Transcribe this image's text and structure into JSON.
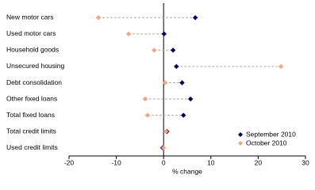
{
  "chart_data": {
    "type": "dot",
    "x_label": "% change",
    "categories": [
      "New motor cars",
      "Used motor cars",
      "Household goods",
      "Unsecured housing",
      "Debt consolidation",
      "Other fixed loans",
      "Total fixed loans",
      "Total credit limits",
      "Used credit limits"
    ],
    "series": [
      {
        "name": "September 2010",
        "color": "#000066",
        "values": [
          6.7,
          0.1,
          2.0,
          2.7,
          3.9,
          5.7,
          4.2,
          0.7,
          -0.2
        ]
      },
      {
        "name": "October 2010",
        "color": "#f4a582",
        "values": [
          -13.8,
          -7.4,
          -2.0,
          24.8,
          0.3,
          -3.9,
          -3.4,
          0.5,
          0.0
        ]
      }
    ],
    "xlim": [
      -20,
      30
    ],
    "xticks": [
      -20,
      -10,
      0,
      10,
      20,
      30
    ],
    "legend": "bottom-right"
  }
}
